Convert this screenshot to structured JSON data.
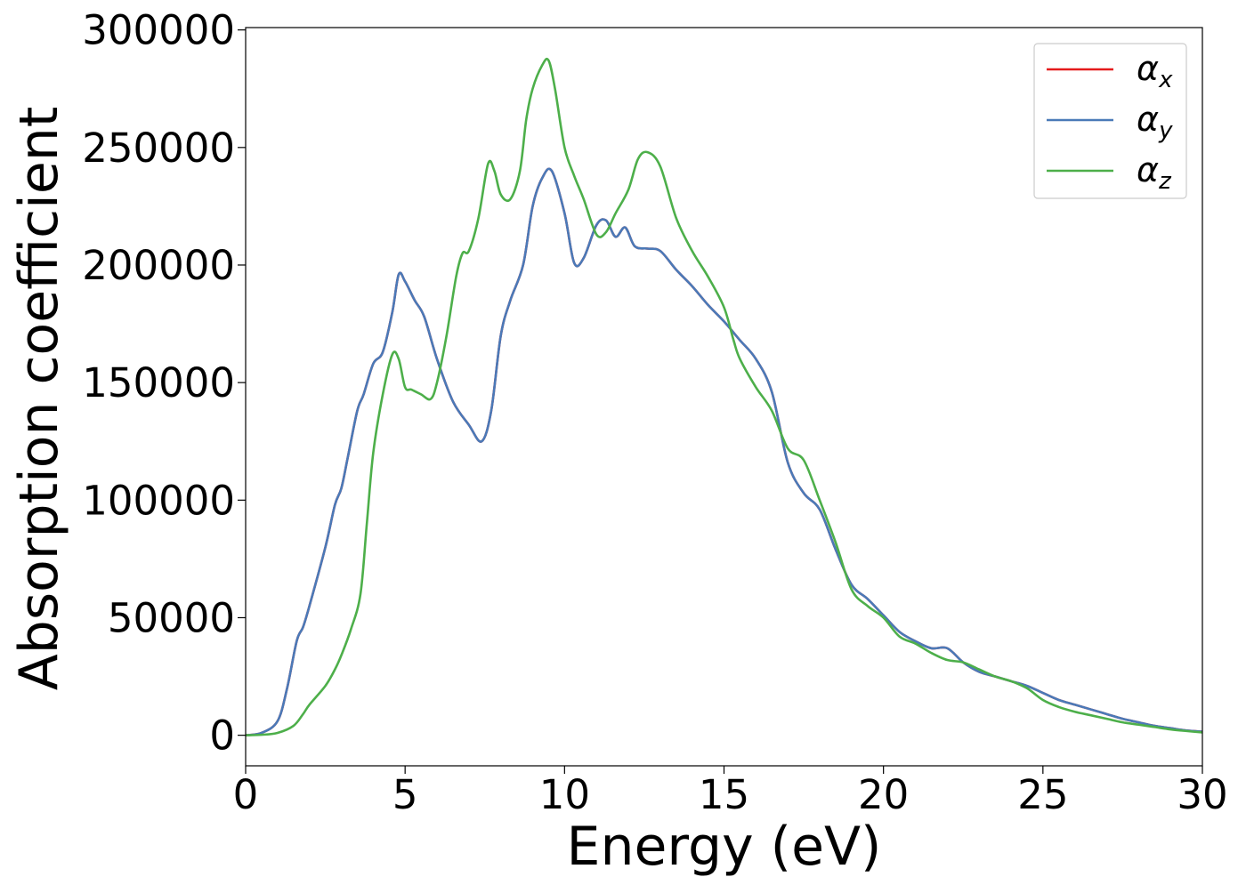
{
  "chart_data": {
    "type": "line",
    "title": "",
    "xlabel": "Energy (eV)",
    "ylabel": "Absorption coefficient",
    "xlim": [
      0,
      30
    ],
    "ylim": [
      -13000,
      301000
    ],
    "xticks": [
      0,
      5,
      10,
      15,
      20,
      25,
      30
    ],
    "xtick_labels": [
      "0",
      "5",
      "10",
      "15",
      "20",
      "25",
      "30"
    ],
    "yticks": [
      0,
      50000,
      100000,
      150000,
      200000,
      250000,
      300000
    ],
    "ytick_labels": [
      "0",
      "50000",
      "100000",
      "150000",
      "200000",
      "250000",
      "300000"
    ],
    "grid": false,
    "legend_position": "top-right",
    "series": [
      {
        "name": "α",
        "subscript": "x",
        "color": "#e41a1c",
        "x": [
          0,
          0.5,
          1.0,
          1.3,
          1.6,
          1.8,
          2.0,
          2.5,
          2.8,
          3.0,
          3.2,
          3.5,
          3.7,
          4.0,
          4.3,
          4.6,
          4.8,
          5.0,
          5.3,
          5.6,
          6.0,
          6.5,
          7.0,
          7.4,
          7.7,
          8.0,
          8.3,
          8.7,
          9.0,
          9.3,
          9.6,
          10.0,
          10.3,
          10.6,
          11.0,
          11.3,
          11.6,
          11.9,
          12.2,
          12.6,
          13.0,
          13.5,
          14.0,
          14.5,
          15.0,
          15.5,
          16.0,
          16.5,
          17.0,
          17.5,
          18.0,
          18.5,
          19.0,
          19.5,
          20.0,
          20.5,
          21.0,
          21.5,
          22.0,
          22.5,
          23.0,
          23.5,
          24.0,
          24.5,
          25.0,
          25.5,
          26.0,
          26.5,
          27.0,
          27.5,
          28.0,
          28.5,
          29.0,
          29.5,
          30.0
        ],
        "y": [
          0,
          1000,
          6000,
          20000,
          40000,
          46000,
          55000,
          80000,
          98000,
          105000,
          118000,
          138000,
          145000,
          158000,
          163000,
          180000,
          196000,
          193000,
          185000,
          178000,
          160000,
          142000,
          132000,
          125000,
          138000,
          170000,
          185000,
          200000,
          225000,
          237000,
          240000,
          222000,
          201000,
          203000,
          217000,
          219000,
          212000,
          216000,
          208000,
          207000,
          206000,
          198000,
          191000,
          183000,
          176000,
          168000,
          160000,
          146000,
          116000,
          103000,
          96000,
          79000,
          64000,
          58000,
          51000,
          44000,
          40000,
          37000,
          37000,
          31000,
          27000,
          25000,
          23000,
          21000,
          18000,
          15000,
          13000,
          11000,
          9000,
          7000,
          5500,
          4000,
          3000,
          2000,
          1500
        ]
      },
      {
        "name": "α",
        "subscript": "y",
        "color": "#4a7ab8",
        "x": [
          0,
          0.5,
          1.0,
          1.3,
          1.6,
          1.8,
          2.0,
          2.5,
          2.8,
          3.0,
          3.2,
          3.5,
          3.7,
          4.0,
          4.3,
          4.6,
          4.8,
          5.0,
          5.3,
          5.6,
          6.0,
          6.5,
          7.0,
          7.4,
          7.7,
          8.0,
          8.3,
          8.7,
          9.0,
          9.3,
          9.6,
          10.0,
          10.3,
          10.6,
          11.0,
          11.3,
          11.6,
          11.9,
          12.2,
          12.6,
          13.0,
          13.5,
          14.0,
          14.5,
          15.0,
          15.5,
          16.0,
          16.5,
          17.0,
          17.5,
          18.0,
          18.5,
          19.0,
          19.5,
          20.0,
          20.5,
          21.0,
          21.5,
          22.0,
          22.5,
          23.0,
          23.5,
          24.0,
          24.5,
          25.0,
          25.5,
          26.0,
          26.5,
          27.0,
          27.5,
          28.0,
          28.5,
          29.0,
          29.5,
          30.0
        ],
        "y": [
          0,
          1000,
          6000,
          20000,
          40000,
          46000,
          55000,
          80000,
          98000,
          105000,
          118000,
          138000,
          145000,
          158000,
          163000,
          180000,
          196000,
          193000,
          185000,
          178000,
          160000,
          142000,
          132000,
          125000,
          138000,
          170000,
          185000,
          200000,
          225000,
          237000,
          240000,
          222000,
          201000,
          203000,
          217000,
          219000,
          212000,
          216000,
          208000,
          207000,
          206000,
          198000,
          191000,
          183000,
          176000,
          168000,
          160000,
          146000,
          116000,
          103000,
          96000,
          79000,
          64000,
          58000,
          51000,
          44000,
          40000,
          37000,
          37000,
          31000,
          27000,
          25000,
          23000,
          21000,
          18000,
          15000,
          13000,
          11000,
          9000,
          7000,
          5500,
          4000,
          3000,
          2000,
          1500
        ]
      },
      {
        "name": "α",
        "subscript": "z",
        "color": "#4daf4a",
        "x": [
          0,
          0.5,
          1.0,
          1.5,
          1.8,
          2.0,
          2.5,
          2.8,
          3.0,
          3.3,
          3.6,
          3.8,
          4.0,
          4.3,
          4.6,
          4.8,
          5.0,
          5.2,
          5.5,
          5.8,
          6.0,
          6.3,
          6.6,
          6.8,
          7.0,
          7.3,
          7.6,
          7.8,
          8.0,
          8.3,
          8.6,
          8.8,
          9.0,
          9.3,
          9.5,
          9.7,
          10.0,
          10.3,
          10.6,
          11.0,
          11.3,
          11.6,
          12.0,
          12.3,
          12.6,
          13.0,
          13.5,
          14.0,
          14.5,
          15.0,
          15.3,
          15.5,
          16.0,
          16.5,
          17.0,
          17.5,
          18.0,
          18.5,
          19.0,
          19.5,
          20.0,
          20.5,
          21.0,
          21.5,
          22.0,
          22.5,
          23.0,
          23.5,
          24.0,
          24.5,
          25.0,
          25.5,
          26.0,
          26.5,
          27.0,
          27.5,
          28.0,
          28.5,
          29.0,
          29.5,
          30.0
        ],
        "y": [
          0,
          200,
          1000,
          4000,
          9000,
          13000,
          21000,
          28000,
          34000,
          45000,
          60000,
          90000,
          120000,
          145000,
          162000,
          160000,
          148000,
          147000,
          145000,
          143000,
          150000,
          170000,
          195000,
          205000,
          206000,
          220000,
          243000,
          240000,
          230000,
          228000,
          240000,
          262000,
          275000,
          285000,
          287000,
          275000,
          250000,
          238000,
          228000,
          213000,
          214000,
          222000,
          232000,
          245000,
          248000,
          242000,
          220000,
          206000,
          195000,
          182000,
          168000,
          160000,
          148000,
          138000,
          122000,
          117000,
          100000,
          82000,
          62000,
          55000,
          50000,
          42000,
          39000,
          35000,
          32000,
          31000,
          28000,
          25000,
          23000,
          20000,
          15000,
          12000,
          10000,
          8500,
          7000,
          5500,
          4500,
          3500,
          2500,
          1800,
          1200
        ]
      }
    ]
  }
}
